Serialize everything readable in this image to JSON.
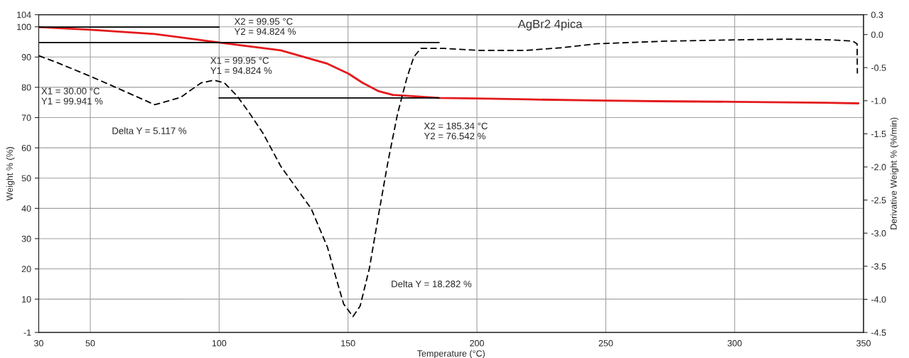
{
  "chart_data": {
    "type": "line",
    "title": "AgBr2 4pica",
    "xlabel": "Temperature (°C)",
    "ylabel": "Weight % (%)",
    "y2label": "Derivative Weight % (%/min)",
    "xlim": [
      30,
      350
    ],
    "xticks": [
      30,
      50,
      100,
      150,
      200,
      250,
      300,
      350
    ],
    "ylim": [
      -1,
      104
    ],
    "yticks": [
      -1,
      10,
      20,
      30,
      40,
      50,
      60,
      70,
      80,
      90,
      100,
      104
    ],
    "y2lim": [
      -4.5,
      0.3
    ],
    "y2ticks": [
      -4.5,
      {
        "value": -4,
        "label": "-4.0"
      },
      -3.5,
      {
        "value": -3,
        "label": "-3.0"
      },
      -2.5,
      {
        "value": -2,
        "label": "-2.0"
      },
      -1.5,
      {
        "value": -1,
        "label": "-1.0"
      },
      -0.5,
      {
        "value": 0,
        "label": "0.0"
      },
      0.3
    ],
    "grid": true,
    "series": [
      {
        "color": "#e41a1c",
        "line_style": "solid",
        "x": [
          30,
          50,
          75,
          100,
          123.9,
          142,
          150.2,
          155.6,
          161.9,
          167.4,
          176,
          185.34,
          200,
          220,
          250,
          270,
          300,
          335,
          348
        ],
        "values": [
          99.9,
          99.0,
          97.6,
          94.8,
          92.2,
          87.8,
          84.5,
          81.5,
          78.7,
          77.5,
          77.0,
          76.5,
          76.3,
          76.0,
          75.6,
          75.4,
          75.2,
          74.9,
          74.7
        ]
      },
      {
        "color": "#000000",
        "line_style": "dashed",
        "axis": "y2",
        "x": [
          30,
          36.9,
          50,
          60,
          75,
          85,
          93,
          98,
          102,
          107,
          112,
          117,
          123.9,
          135.7,
          142,
          145.6,
          148.3,
          151.9,
          154.7,
          158.3,
          161.9,
          165.5,
          169.2,
          172.8,
          175.5,
          178.2,
          187.3,
          200.9,
          219,
          232.6,
          246.2,
          273.4,
          300.5,
          320.5,
          336.8,
          345.9,
          347.5,
          347.6
        ],
        "values": [
          -0.32,
          -0.42,
          -0.63,
          -0.8,
          -1.06,
          -0.95,
          -0.73,
          -0.69,
          -0.73,
          -0.93,
          -1.2,
          -1.49,
          -1.99,
          -2.63,
          -3.21,
          -3.71,
          -4.07,
          -4.26,
          -4.1,
          -3.53,
          -2.71,
          -1.92,
          -1.2,
          -0.66,
          -0.34,
          -0.21,
          -0.21,
          -0.24,
          -0.24,
          -0.2,
          -0.14,
          -0.1,
          -0.08,
          -0.07,
          -0.08,
          -0.1,
          -0.14,
          -0.59
        ]
      },
      {
        "color": "#000000",
        "line_style": "solid",
        "x": [
          30,
          99.95
        ],
        "values": [
          99.9,
          99.9
        ]
      },
      {
        "color": "#000000",
        "line_style": "solid",
        "x": [
          30,
          185.34
        ],
        "values": [
          94.8,
          94.8
        ]
      },
      {
        "color": "#000000",
        "line_style": "solid",
        "x": [
          99.95,
          185.34
        ],
        "values": [
          76.5,
          76.5
        ]
      }
    ],
    "annotations": [
      "X1 = 30.00 °C\nY1 = 99.941 %",
      "X2 = 99.95 °C\nY2 = 94.824 %",
      "X1 = 99.95 °C\nY1 = 94.824 %",
      "X2 = 185.34 °C\nY2 = 76.542 %",
      "Delta Y = 5.117 %",
      "Delta Y = 18.282 %"
    ]
  }
}
